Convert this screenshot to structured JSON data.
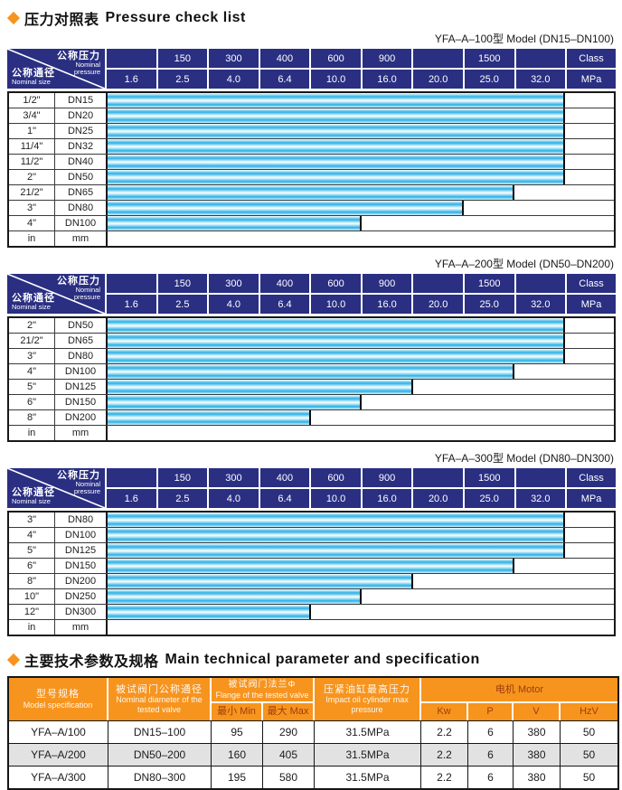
{
  "colors": {
    "navy": "#2a2f82",
    "bar_cyan": "#2ab1e6",
    "orange": "#f7941e",
    "diamond": "#f7941d",
    "alt_row": "#e2e2e2",
    "subheader_text": "#9c3c10"
  },
  "sections": {
    "pressure": {
      "title_zh": "压力对照表",
      "title_en": "Pressure check list"
    },
    "spec": {
      "title_zh": "主要技术参数及规格",
      "title_en": "Main technical parameter and specification"
    }
  },
  "pressure_header": {
    "corner": {
      "top_zh": "公称压力",
      "top_en": "Nominal pressure",
      "bottom_zh": "公称通径",
      "bottom_en": "Nominal size"
    },
    "class_row": [
      "",
      "150",
      "300",
      "400",
      "600",
      "900",
      "",
      "1500",
      "",
      "Class"
    ],
    "mpa_row": [
      "1.6",
      "2.5",
      "4.0",
      "6.4",
      "10.0",
      "16.0",
      "20.0",
      "25.0",
      "32.0",
      "MPa"
    ],
    "unit_inch": "in",
    "unit_mm": "mm"
  },
  "pressure_tables": [
    {
      "subtitle": "YFA–A–100型  Model (DN15–DN100)",
      "rows": [
        {
          "inch": "1/2\"",
          "dn": "DN15",
          "max_mpa": "32.0"
        },
        {
          "inch": "3/4\"",
          "dn": "DN20",
          "max_mpa": "32.0"
        },
        {
          "inch": "1\"",
          "dn": "DN25",
          "max_mpa": "32.0"
        },
        {
          "inch": "11/4\"",
          "dn": "DN32",
          "max_mpa": "32.0"
        },
        {
          "inch": "11/2\"",
          "dn": "DN40",
          "max_mpa": "32.0"
        },
        {
          "inch": "2\"",
          "dn": "DN50",
          "max_mpa": "32.0"
        },
        {
          "inch": "21/2\"",
          "dn": "DN65",
          "max_mpa": "25.0"
        },
        {
          "inch": "3\"",
          "dn": "DN80",
          "max_mpa": "20.0"
        },
        {
          "inch": "4\"",
          "dn": "DN100",
          "max_mpa": "10.0"
        }
      ]
    },
    {
      "subtitle": "YFA–A–200型  Model (DN50–DN200)",
      "rows": [
        {
          "inch": "2\"",
          "dn": "DN50",
          "max_mpa": "32.0"
        },
        {
          "inch": "21/2\"",
          "dn": "DN65",
          "max_mpa": "32.0"
        },
        {
          "inch": "3\"",
          "dn": "DN80",
          "max_mpa": "32.0"
        },
        {
          "inch": "4\"",
          "dn": "DN100",
          "max_mpa": "25.0"
        },
        {
          "inch": "5\"",
          "dn": "DN125",
          "max_mpa": "16.0"
        },
        {
          "inch": "6\"",
          "dn": "DN150",
          "max_mpa": "10.0"
        },
        {
          "inch": "8\"",
          "dn": "DN200",
          "max_mpa": "6.4"
        }
      ]
    },
    {
      "subtitle": "YFA–A–300型  Model (DN80–DN300)",
      "rows": [
        {
          "inch": "3\"",
          "dn": "DN80",
          "max_mpa": "32.0"
        },
        {
          "inch": "4\"",
          "dn": "DN100",
          "max_mpa": "32.0"
        },
        {
          "inch": "5\"",
          "dn": "DN125",
          "max_mpa": "32.0"
        },
        {
          "inch": "6\"",
          "dn": "DN150",
          "max_mpa": "25.0"
        },
        {
          "inch": "8\"",
          "dn": "DN200",
          "max_mpa": "16.0"
        },
        {
          "inch": "10\"",
          "dn": "DN250",
          "max_mpa": "10.0"
        },
        {
          "inch": "12\"",
          "dn": "DN300",
          "max_mpa": "6.4"
        }
      ]
    }
  ],
  "spec_table": {
    "headers": {
      "model_zh": "型号规格",
      "model_en": "Model specification",
      "diameter_zh": "被试阀门公称通径",
      "diameter_en": "Nominal diameter of the tested valve",
      "flange_zh": "被试阀门法兰Φ",
      "flange_en": "Flange of the tested valve",
      "min": "最小 Min",
      "max": "最大 Max",
      "cyl_zh": "压紧油缸最高压力",
      "cyl_en": "Impact oil cylinder max pressure",
      "motor": "电机  Motor",
      "kw": "Kw",
      "p": "P",
      "v": "V",
      "hz": "HzV"
    },
    "rows": [
      {
        "model": "YFA–A/100",
        "diameter": "DN15–100",
        "min": "95",
        "max": "290",
        "cyl": "31.5MPa",
        "kw": "2.2",
        "p": "6",
        "v": "380",
        "hz": "50"
      },
      {
        "model": "YFA–A/200",
        "diameter": "DN50–200",
        "min": "160",
        "max": "405",
        "cyl": "31.5MPa",
        "kw": "2.2",
        "p": "6",
        "v": "380",
        "hz": "50"
      },
      {
        "model": "YFA–A/300",
        "diameter": "DN80–300",
        "min": "195",
        "max": "580",
        "cyl": "31.5MPa",
        "kw": "2.2",
        "p": "6",
        "v": "380",
        "hz": "50"
      }
    ]
  }
}
